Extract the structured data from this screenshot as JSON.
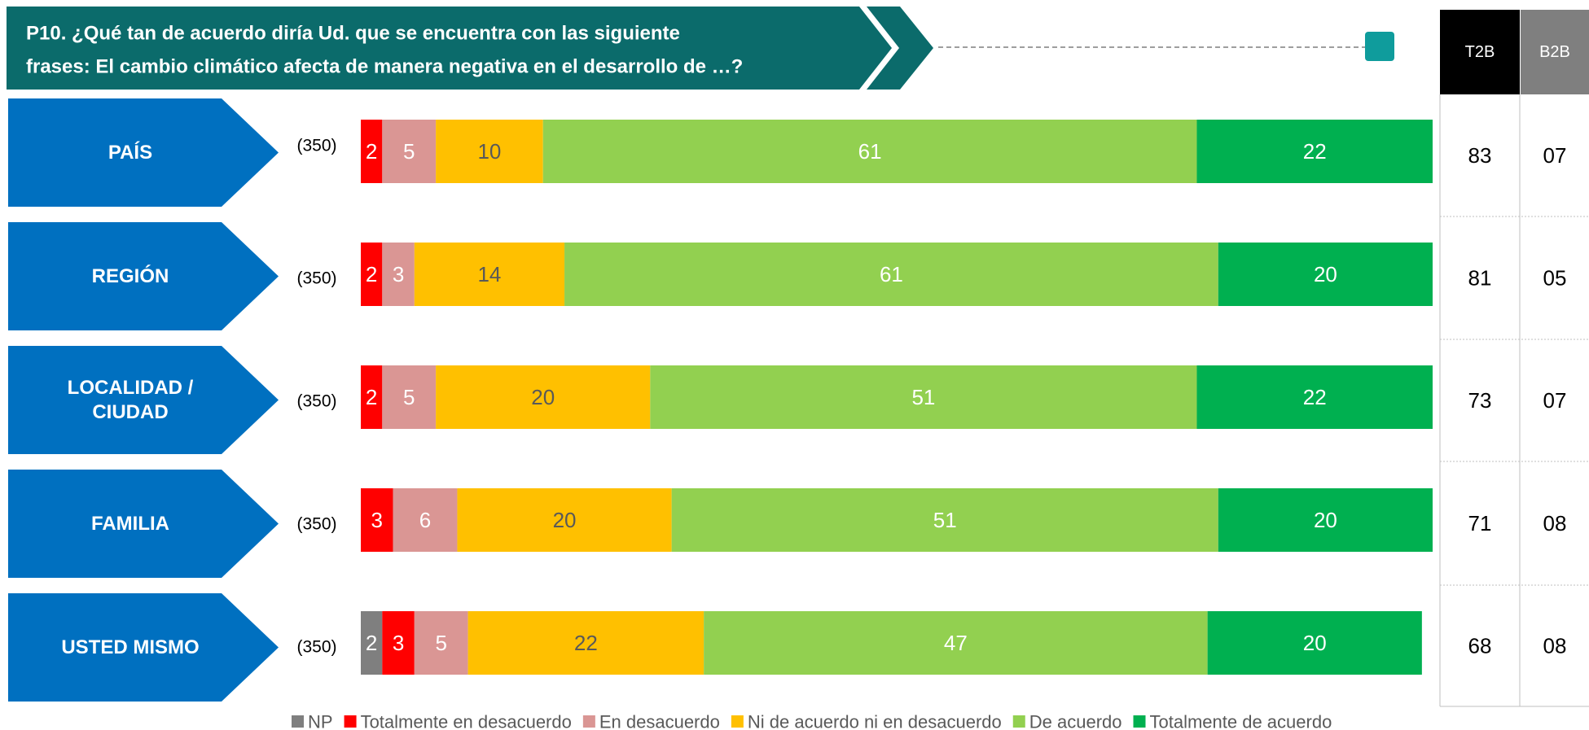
{
  "chart_data": {
    "type": "stacked-bar",
    "title": [
      "P10. ¿Qué tan de acuerdo diría Ud. que se encuentra con las siguiente",
      "frases: El cambio climático afecta de manera negativa en el desarrollo de …?"
    ],
    "categories": [
      [
        "PAÍS"
      ],
      [
        "REGIÓN"
      ],
      [
        "LOCALIDAD /",
        "CIUDAD"
      ],
      [
        "FAMILIA"
      ],
      [
        "USTED MISMO"
      ]
    ],
    "sample_sizes": [
      "(350)",
      "(350)",
      "(350)",
      "(350)",
      "(350)"
    ],
    "xlim": [
      0,
      100
    ],
    "series": [
      {
        "name": "NP",
        "color": "#7f7f7f",
        "label_color": "#ffffff",
        "values": [
          null,
          null,
          null,
          null,
          2
        ]
      },
      {
        "name": "Totalmente en desacuerdo",
        "color": "#ff0000",
        "label_color": "#ffffff",
        "values": [
          2,
          2,
          2,
          3,
          3
        ]
      },
      {
        "name": "En desacuerdo",
        "color": "#da9694",
        "label_color": "#ffffff",
        "values": [
          5,
          3,
          5,
          6,
          5
        ]
      },
      {
        "name": "Ni de acuerdo ni en desacuerdo",
        "color": "#ffc000",
        "label_color": "#595959",
        "values": [
          10,
          14,
          20,
          20,
          22
        ]
      },
      {
        "name": "De acuerdo",
        "color": "#92d050",
        "label_color": "#ffffff",
        "values": [
          61,
          61,
          51,
          51,
          47
        ]
      },
      {
        "name": "Totalmente de acuerdo",
        "color": "#00b050",
        "label_color": "#ffffff",
        "values": [
          22,
          20,
          22,
          20,
          20
        ]
      }
    ],
    "table": {
      "headers": [
        "T2B",
        "B2B"
      ],
      "t2b": [
        83,
        81,
        73,
        71,
        68
      ],
      "b2b": [
        "07",
        "05",
        "07",
        "08",
        "08"
      ]
    }
  }
}
